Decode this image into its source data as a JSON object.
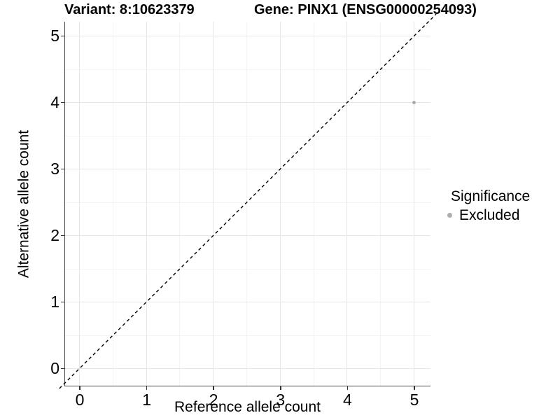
{
  "header": {
    "variant_title": "Variant: 8:10623379",
    "gene_title": "Gene: PINX1 (ENSG00000254093)"
  },
  "axes": {
    "x_label": "Reference allele count",
    "y_label": "Alternative allele count"
  },
  "legend": {
    "title": "Significance",
    "items": [
      {
        "label": "Excluded",
        "color": "#adadad"
      }
    ]
  },
  "colors": {
    "axis_line": "#464646",
    "tick_mark": "#333333",
    "grid_major": "#e7e7e7",
    "grid_minor": "#f3f3f3",
    "identity_line": "#000000",
    "point": "#adadad",
    "text": "#000000",
    "background": "#ffffff"
  },
  "chart_data": {
    "type": "scatter",
    "title": "Variant: 8:10623379   |   Gene: PINX1 (ENSG00000254093)",
    "xlabel": "Reference allele count",
    "ylabel": "Alternative allele count",
    "xlim": [
      -0.23,
      5.24
    ],
    "ylim": [
      -0.25,
      5.23
    ],
    "x_ticks": [
      0,
      1,
      2,
      3,
      4,
      5
    ],
    "y_ticks": [
      0,
      1,
      2,
      3,
      4,
      5
    ],
    "grid": {
      "major": true,
      "minor": true
    },
    "legend_position": "right",
    "series": [
      {
        "name": "Excluded",
        "color": "#adadad",
        "points": [
          {
            "x": 5,
            "y": 4
          }
        ]
      }
    ],
    "identity_line": {
      "type": "y=x",
      "style": "dashed",
      "color": "#000000",
      "t_from": -0.3,
      "t_to": 5.33
    }
  }
}
